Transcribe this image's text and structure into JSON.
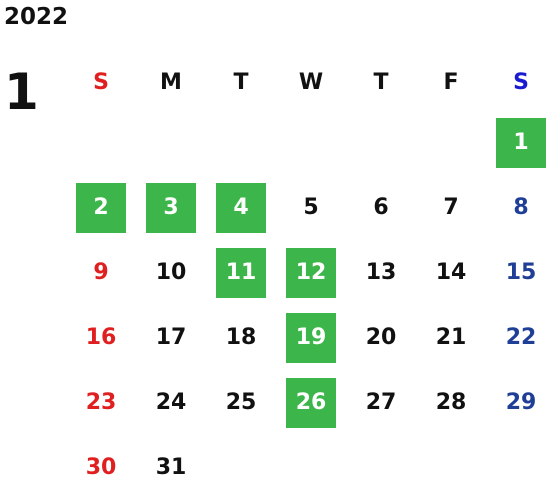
{
  "calendar": {
    "year": "2022",
    "month": "1",
    "weekdays": [
      "S",
      "M",
      "T",
      "W",
      "T",
      "F",
      "S"
    ],
    "start_offset": 6,
    "days": [
      "1",
      "2",
      "3",
      "4",
      "5",
      "6",
      "7",
      "8",
      "9",
      "10",
      "11",
      "12",
      "13",
      "14",
      "15",
      "16",
      "17",
      "18",
      "19",
      "20",
      "21",
      "22",
      "23",
      "24",
      "25",
      "26",
      "27",
      "28",
      "29",
      "30",
      "31"
    ],
    "highlighted_days": [
      "1",
      "2",
      "3",
      "4",
      "11",
      "12",
      "19",
      "26"
    ],
    "colors": {
      "sunday": "#e02020",
      "saturday": "#1f3e96",
      "saturday_header": "#1a1ad0",
      "highlight": "#3cb54a",
      "text": "#111111"
    }
  }
}
